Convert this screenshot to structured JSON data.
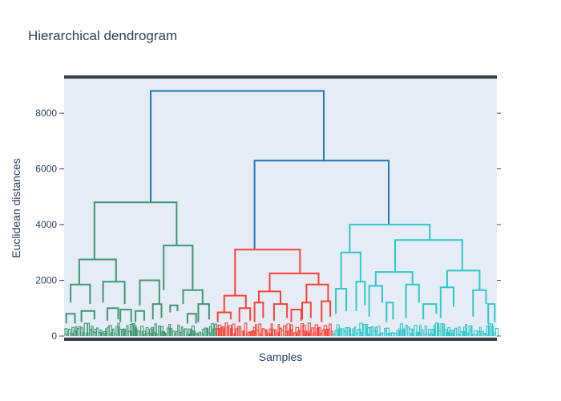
{
  "chart_data": {
    "type": "dendrogram",
    "title": "Hierarchical dendrogram",
    "xlabel": "Samples",
    "ylabel": "Euclidean distances",
    "ylim": [
      0,
      9300
    ],
    "yticks": [
      0,
      2000,
      4000,
      6000,
      8000
    ],
    "ytick_labels": [
      "0",
      "2000",
      "4000",
      "6000",
      "8000"
    ],
    "grid": false,
    "colors": {
      "root": "#1f77b4",
      "background": "#e5ecf6",
      "frame": "#3d3d3d",
      "cluster_green": "#3d9970",
      "cluster_red": "#ff4136",
      "cluster_cyan": "#2ec7c9"
    },
    "clusters": [
      {
        "color": "#3d9970",
        "leaf_span": [
          0.0,
          0.35
        ]
      },
      {
        "color": "#ff4136",
        "leaf_span": [
          0.35,
          0.62
        ]
      },
      {
        "color": "#2ec7c9",
        "leaf_span": [
          0.62,
          1.0
        ]
      }
    ],
    "links": [
      {
        "color": "#1f77b4",
        "x": [
          0.2,
          0.2,
          0.6,
          0.6
        ],
        "y": [
          4800,
          8800,
          8800,
          6300
        ]
      },
      {
        "color": "#1f77b4",
        "x": [
          0.44,
          0.44,
          0.75,
          0.75
        ],
        "y": [
          3100,
          6300,
          6300,
          4000
        ]
      },
      {
        "color": "#3d9970",
        "x": [
          0.07,
          0.07,
          0.26,
          0.26
        ],
        "y": [
          2750,
          4800,
          4800,
          3250
        ]
      },
      {
        "color": "#3d9970",
        "x": [
          0.035,
          0.035,
          0.12,
          0.12
        ],
        "y": [
          1850,
          2750,
          2750,
          1950
        ]
      },
      {
        "color": "#3d9970",
        "x": [
          0.23,
          0.23,
          0.297,
          0.297
        ],
        "y": [
          1650,
          3250,
          3250,
          1650
        ]
      },
      {
        "color": "#3d9970",
        "x": [
          0.015,
          0.015,
          0.06,
          0.06
        ],
        "y": [
          1200,
          1850,
          1850,
          1150
        ]
      },
      {
        "color": "#3d9970",
        "x": [
          0.09,
          0.09,
          0.14,
          0.14
        ],
        "y": [
          1200,
          1950,
          1950,
          1150
        ]
      },
      {
        "color": "#3d9970",
        "x": [
          0.175,
          0.175,
          0.22,
          0.22
        ],
        "y": [
          1100,
          2000,
          2000,
          1150
        ]
      },
      {
        "color": "#3d9970",
        "x": [
          0.275,
          0.275,
          0.32,
          0.32
        ],
        "y": [
          1150,
          1650,
          1650,
          1150
        ]
      },
      {
        "color": "#3d9970",
        "x": [
          0.245,
          0.245,
          0.262,
          0.262
        ],
        "y": [
          850,
          1100,
          1100,
          900
        ]
      },
      {
        "color": "#3d9970",
        "x": [
          0.005,
          0.005,
          0.025,
          0.025
        ],
        "y": [
          450,
          800,
          800,
          450
        ]
      },
      {
        "color": "#3d9970",
        "x": [
          0.04,
          0.04,
          0.07,
          0.07
        ],
        "y": [
          500,
          900,
          900,
          600
        ]
      },
      {
        "color": "#3d9970",
        "x": [
          0.1,
          0.1,
          0.125,
          0.125
        ],
        "y": [
          550,
          1000,
          1000,
          600
        ]
      },
      {
        "color": "#3d9970",
        "x": [
          0.13,
          0.13,
          0.155,
          0.155
        ],
        "y": [
          500,
          950,
          950,
          500
        ]
      },
      {
        "color": "#3d9970",
        "x": [
          0.165,
          0.165,
          0.185,
          0.185
        ],
        "y": [
          500,
          900,
          900,
          550
        ]
      },
      {
        "color": "#3d9970",
        "x": [
          0.205,
          0.205,
          0.225,
          0.225
        ],
        "y": [
          600,
          1150,
          1150,
          650
        ]
      },
      {
        "color": "#3d9970",
        "x": [
          0.285,
          0.285,
          0.305,
          0.305
        ],
        "y": [
          450,
          800,
          800,
          450
        ]
      },
      {
        "color": "#3d9970",
        "x": [
          0.31,
          0.31,
          0.335,
          0.335
        ],
        "y": [
          500,
          1150,
          1150,
          600
        ]
      },
      {
        "color": "#ff4136",
        "x": [
          0.395,
          0.395,
          0.545,
          0.545
        ],
        "y": [
          1450,
          3100,
          3100,
          2250
        ]
      },
      {
        "color": "#ff4136",
        "x": [
          0.475,
          0.475,
          0.588,
          0.588
        ],
        "y": [
          1600,
          2250,
          2250,
          1850
        ]
      },
      {
        "color": "#ff4136",
        "x": [
          0.37,
          0.37,
          0.42,
          0.42
        ],
        "y": [
          850,
          1450,
          1450,
          1000
        ]
      },
      {
        "color": "#ff4136",
        "x": [
          0.45,
          0.45,
          0.5,
          0.5
        ],
        "y": [
          1200,
          1600,
          1600,
          1150
        ]
      },
      {
        "color": "#ff4136",
        "x": [
          0.56,
          0.56,
          0.61,
          0.61
        ],
        "y": [
          1200,
          1850,
          1850,
          1250
        ]
      },
      {
        "color": "#ff4136",
        "x": [
          0.355,
          0.355,
          0.385,
          0.385
        ],
        "y": [
          500,
          850,
          850,
          600
        ]
      },
      {
        "color": "#ff4136",
        "x": [
          0.405,
          0.405,
          0.43,
          0.43
        ],
        "y": [
          500,
          1000,
          1000,
          550
        ]
      },
      {
        "color": "#ff4136",
        "x": [
          0.44,
          0.44,
          0.46,
          0.46
        ],
        "y": [
          500,
          1200,
          1200,
          650
        ]
      },
      {
        "color": "#ff4136",
        "x": [
          0.485,
          0.485,
          0.515,
          0.515
        ],
        "y": [
          550,
          1150,
          1150,
          650
        ]
      },
      {
        "color": "#ff4136",
        "x": [
          0.525,
          0.525,
          0.548,
          0.548
        ],
        "y": [
          500,
          950,
          950,
          550
        ]
      },
      {
        "color": "#ff4136",
        "x": [
          0.55,
          0.55,
          0.57,
          0.57
        ],
        "y": [
          600,
          1200,
          1200,
          650
        ]
      },
      {
        "color": "#ff4136",
        "x": [
          0.595,
          0.595,
          0.615,
          0.615
        ],
        "y": [
          500,
          1250,
          1250,
          700
        ]
      },
      {
        "color": "#2ec7c9",
        "x": [
          0.66,
          0.66,
          0.845,
          0.845
        ],
        "y": [
          3000,
          4000,
          4000,
          3450
        ]
      },
      {
        "color": "#2ec7c9",
        "x": [
          0.765,
          0.765,
          0.92,
          0.92
        ],
        "y": [
          2300,
          3450,
          3450,
          2350
        ]
      },
      {
        "color": "#2ec7c9",
        "x": [
          0.64,
          0.64,
          0.685,
          0.685
        ],
        "y": [
          1700,
          3000,
          3000,
          1950
        ]
      },
      {
        "color": "#2ec7c9",
        "x": [
          0.72,
          0.72,
          0.805,
          0.805
        ],
        "y": [
          1800,
          2300,
          2300,
          1850
        ]
      },
      {
        "color": "#2ec7c9",
        "x": [
          0.885,
          0.885,
          0.96,
          0.96
        ],
        "y": [
          1750,
          2350,
          2350,
          1650
        ]
      },
      {
        "color": "#2ec7c9",
        "x": [
          0.628,
          0.628,
          0.652,
          0.652
        ],
        "y": [
          800,
          1700,
          1700,
          900
        ]
      },
      {
        "color": "#2ec7c9",
        "x": [
          0.675,
          0.675,
          0.695,
          0.695
        ],
        "y": [
          900,
          1950,
          1950,
          1100
        ]
      },
      {
        "color": "#2ec7c9",
        "x": [
          0.705,
          0.705,
          0.735,
          0.735
        ],
        "y": [
          700,
          1800,
          1800,
          1200
        ]
      },
      {
        "color": "#2ec7c9",
        "x": [
          0.745,
          0.745,
          0.76,
          0.76
        ],
        "y": [
          500,
          1200,
          1200,
          600
        ]
      },
      {
        "color": "#2ec7c9",
        "x": [
          0.79,
          0.79,
          0.82,
          0.82
        ],
        "y": [
          650,
          1850,
          1850,
          1200
        ]
      },
      {
        "color": "#2ec7c9",
        "x": [
          0.83,
          0.83,
          0.86,
          0.86
        ],
        "y": [
          600,
          1150,
          1150,
          800
        ]
      },
      {
        "color": "#2ec7c9",
        "x": [
          0.87,
          0.87,
          0.9,
          0.9
        ],
        "y": [
          650,
          1750,
          1750,
          1050
        ]
      },
      {
        "color": "#2ec7c9",
        "x": [
          0.945,
          0.945,
          0.975,
          0.975
        ],
        "y": [
          700,
          1650,
          1650,
          1150
        ]
      },
      {
        "color": "#2ec7c9",
        "x": [
          0.98,
          0.98,
          0.995,
          0.995
        ],
        "y": [
          450,
          1150,
          1150,
          500
        ]
      }
    ]
  }
}
